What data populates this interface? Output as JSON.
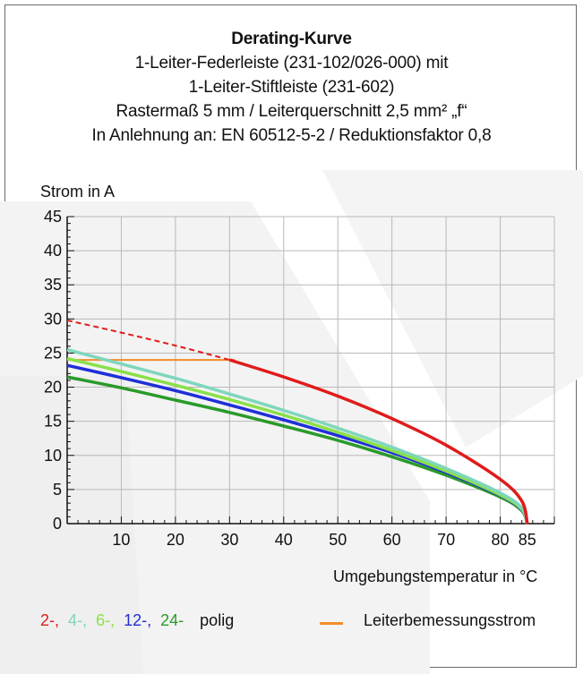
{
  "chart_data": {
    "type": "line",
    "title": "Derating-Kurve",
    "subtitles": [
      "1-Leiter-Federleiste (231-102/026-000) mit",
      "1-Leiter-Stiftleiste (231-602)",
      "Rastermaß 5 mm / Leiterquerschnitt 2,5 mm² „f“",
      "In Anlehnung an: EN 60512-5-2 / Reduktionsfaktor 0,8"
    ],
    "xlabel": "Umgebungstemperatur in °C",
    "ylabel": "Strom in A",
    "xlim": [
      0,
      90
    ],
    "ylim": [
      0,
      45
    ],
    "xticks": [
      "10",
      "20",
      "30",
      "40",
      "50",
      "60",
      "70",
      "80",
      "85"
    ],
    "xtick_values": [
      10,
      20,
      30,
      40,
      50,
      60,
      70,
      80,
      85
    ],
    "yticks": [
      "0",
      "5",
      "10",
      "15",
      "20",
      "25",
      "30",
      "35",
      "40",
      "45"
    ],
    "ytick_values": [
      0,
      5,
      10,
      15,
      20,
      25,
      30,
      35,
      40,
      45
    ],
    "grid": true,
    "series": [
      {
        "name": "2-",
        "color": "#e01b1b",
        "dashed_until": 30,
        "x": [
          0,
          10,
          20,
          30,
          40,
          50,
          60,
          70,
          80,
          84,
          85
        ],
        "y": [
          29.8,
          28.0,
          26.1,
          24.0,
          21.5,
          18.7,
          15.4,
          11.5,
          6.5,
          3.3,
          0
        ]
      },
      {
        "name": "4-",
        "color": "#7fd6bd",
        "x": [
          0,
          10,
          20,
          30,
          40,
          50,
          60,
          70,
          80,
          84,
          85
        ],
        "y": [
          25.5,
          23.4,
          21.3,
          19.0,
          16.6,
          14.0,
          11.2,
          8.1,
          4.5,
          2.3,
          0
        ]
      },
      {
        "name": "6-",
        "color": "#8ae04a",
        "x": [
          0,
          10,
          20,
          30,
          40,
          50,
          60,
          70,
          80,
          84,
          85
        ],
        "y": [
          24.2,
          22.3,
          20.3,
          18.2,
          15.9,
          13.4,
          10.7,
          7.7,
          4.2,
          2.1,
          0
        ]
      },
      {
        "name": "12-",
        "color": "#1f2fd8",
        "x": [
          0,
          10,
          20,
          30,
          40,
          50,
          60,
          70,
          80,
          84,
          85
        ],
        "y": [
          23.2,
          21.4,
          19.5,
          17.4,
          15.2,
          12.9,
          10.4,
          7.5,
          4.1,
          2.0,
          0
        ]
      },
      {
        "name": "24-",
        "color": "#2a9a2a",
        "x": [
          0,
          10,
          20,
          30,
          40,
          50,
          60,
          70,
          80,
          84,
          85
        ],
        "y": [
          21.5,
          19.9,
          18.1,
          16.3,
          14.3,
          12.2,
          9.8,
          7.1,
          3.9,
          1.9,
          0
        ]
      }
    ],
    "rated_current": {
      "label": "Leiterbemessungsstrom",
      "color": "#f28c28",
      "x": [
        0,
        31
      ],
      "y": 24
    },
    "legend": {
      "pole_labels": [
        "2-,",
        "4-,",
        "6-,",
        "12-,",
        "24-"
      ],
      "pole_colors": [
        "#e01b1b",
        "#7fd6bd",
        "#8ae04a",
        "#1f2fd8",
        "#2a9a2a"
      ],
      "pole_suffix": "polig"
    }
  }
}
